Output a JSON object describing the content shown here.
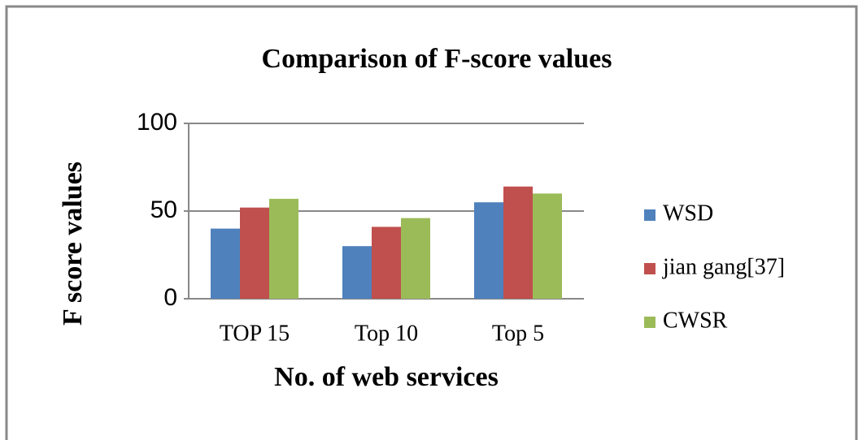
{
  "chart_data": {
    "type": "bar",
    "title": "Comparison of F-score values",
    "xlabel": "No. of web services",
    "ylabel": "F score values",
    "categories": [
      "TOP 15",
      "Top 10",
      "Top 5"
    ],
    "series": [
      {
        "name": "WSD",
        "color": "#4f81bd",
        "values": [
          40,
          30,
          55
        ]
      },
      {
        "name": "jian gang[37]",
        "color": "#c0504d",
        "values": [
          52,
          41,
          64
        ]
      },
      {
        "name": "CWSR",
        "color": "#9bbb59",
        "values": [
          57,
          46,
          60
        ]
      }
    ],
    "ylim": [
      0,
      100
    ],
    "yticks": [
      0,
      50,
      100
    ],
    "grid": true,
    "legend": "right"
  }
}
